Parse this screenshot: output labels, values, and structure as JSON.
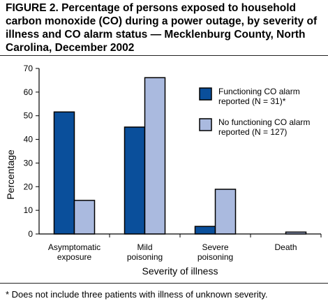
{
  "figure": {
    "title": "FIGURE 2. Percentage of persons exposed to household carbon monoxide (CO) during a power outage, by severity of illness and CO alarm status — Mecklenburg County, North Carolina, December 2002",
    "footnote": "* Does not include three patients with illness of unknown severity."
  },
  "chart_data": {
    "type": "bar",
    "title": "FIGURE 2. Percentage of persons exposed to household carbon monoxide (CO) during a power outage, by severity of illness and CO alarm status — Mecklenburg County, North Carolina, December 2002",
    "xlabel": "Severity of illness",
    "ylabel": "Percentage",
    "ylim": [
      0,
      70
    ],
    "yticks": [
      0,
      10,
      20,
      30,
      40,
      50,
      60,
      70
    ],
    "grid": false,
    "legend_position": "top-right",
    "categories": [
      [
        "Asymptomatic",
        "exposure"
      ],
      [
        "Mild",
        "poisoning"
      ],
      [
        "Severe",
        "poisoning"
      ],
      [
        "Death"
      ]
    ],
    "series": [
      {
        "name": "Functioning CO alarm reported (N = 31)*",
        "legend_lines": [
          "Functioning CO alarm",
          "reported (N = 31)*"
        ],
        "color": "#0a4f9b",
        "values": [
          51.6,
          45.2,
          3.2,
          0
        ]
      },
      {
        "name": "No functioning CO alarm reported (N = 127)",
        "legend_lines": [
          "No functioning CO alarm",
          "reported (N = 127)"
        ],
        "color": "#aabadf",
        "values": [
          14.2,
          66.1,
          18.9,
          0.8
        ]
      }
    ]
  }
}
